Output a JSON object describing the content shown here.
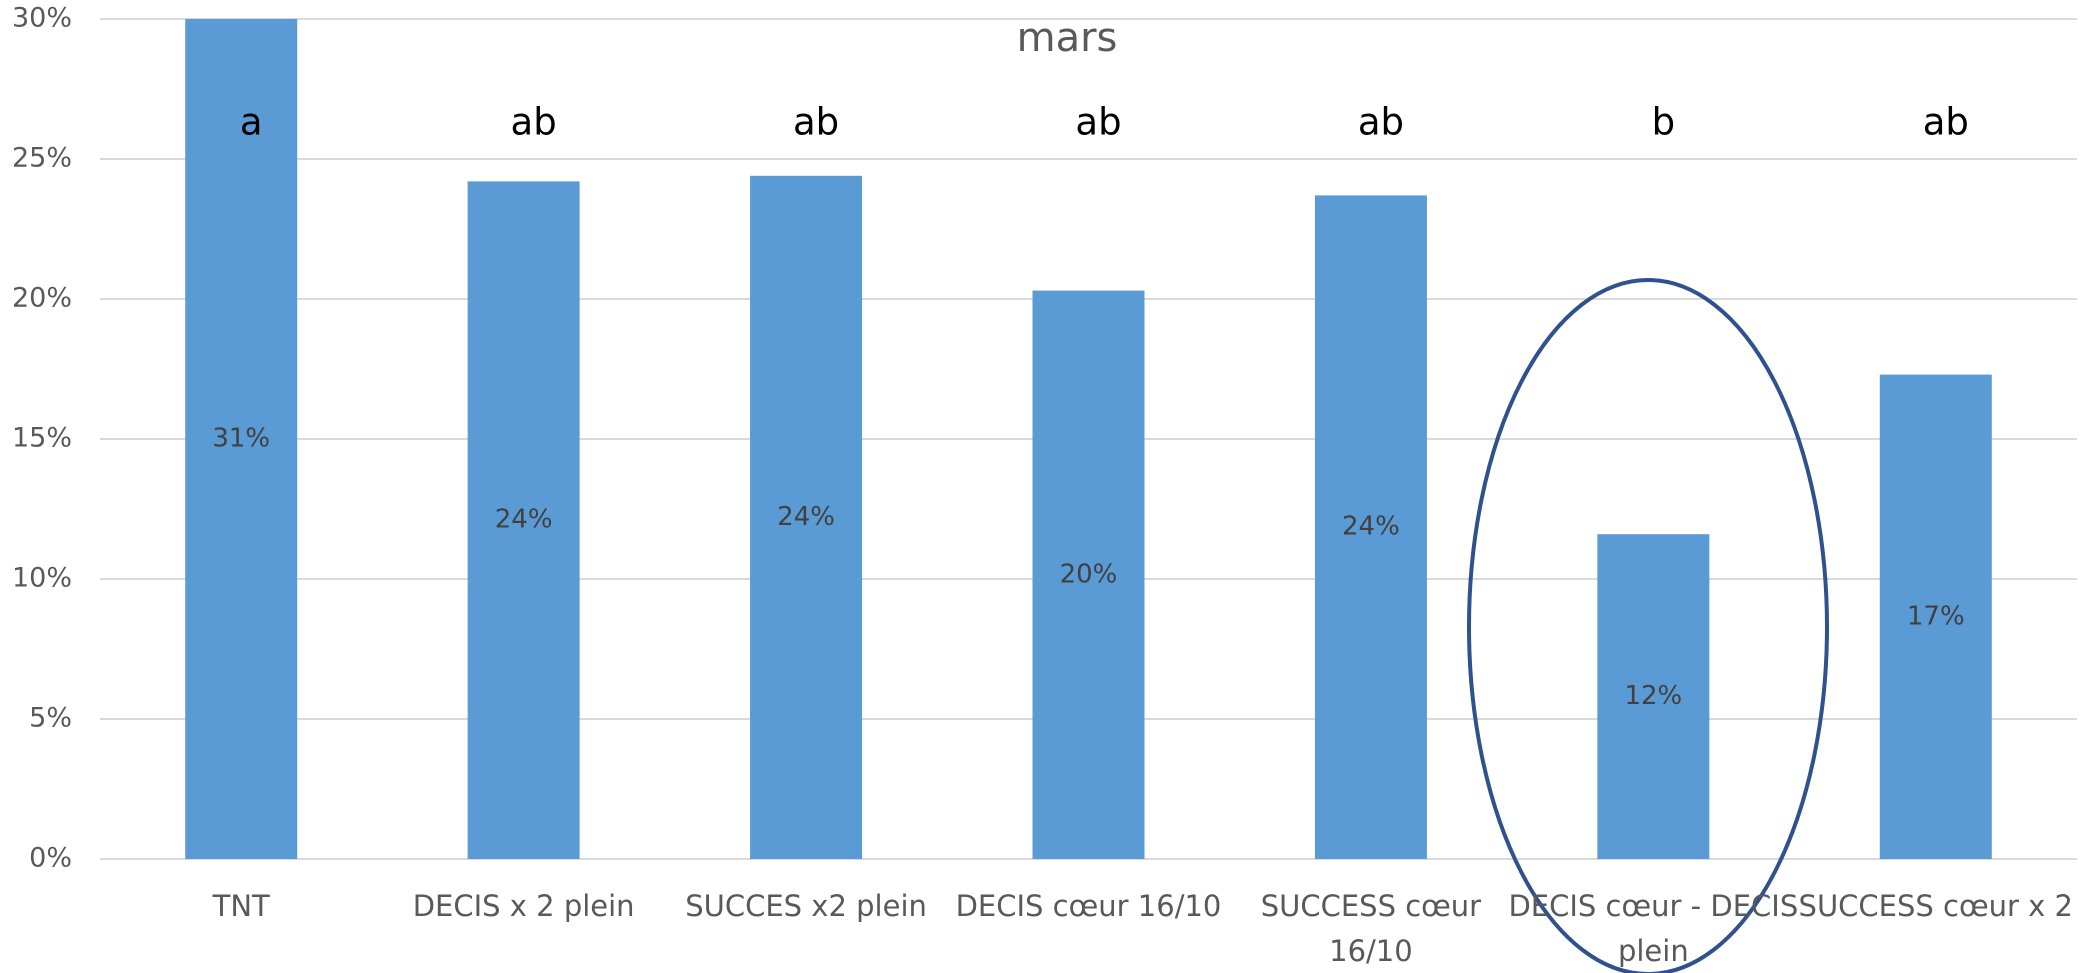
{
  "chart_data": {
    "type": "bar",
    "title": "mars",
    "categories": [
      "TNT",
      "DECIS x 2 plein",
      "SUCCES x2 plein",
      "DECIS cœur 16/10",
      "SUCCESS cœur 16/10",
      "DECIS cœur - DECIS plein",
      "SUCCESS cœur x 2"
    ],
    "values": [
      31,
      24.2,
      24.4,
      20.3,
      23.7,
      11.6,
      17.3
    ],
    "value_labels": [
      "31%",
      "24%",
      "24%",
      "20%",
      "24%",
      "12%",
      "17%"
    ],
    "annotations": [
      "a",
      "ab",
      "ab",
      "ab",
      "ab",
      "b",
      "ab"
    ],
    "color": "#5b9bd5",
    "ylim": [
      0,
      30
    ],
    "yticks": [
      {
        "value": 0,
        "label": "0%"
      },
      {
        "value": 5,
        "label": "5%"
      },
      {
        "value": 10,
        "label": "10%"
      },
      {
        "value": 15,
        "label": "15%"
      },
      {
        "value": 20,
        "label": "20%"
      },
      {
        "value": 25,
        "label": "25%"
      },
      {
        "value": 30,
        "label": "30%"
      }
    ],
    "grid": true
  }
}
